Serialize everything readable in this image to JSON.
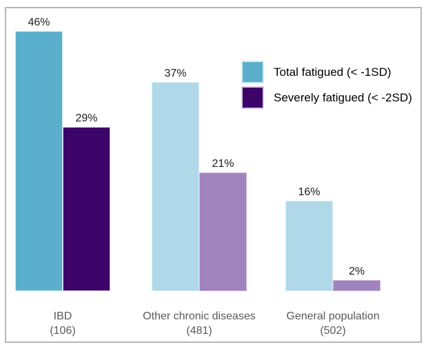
{
  "chart_data": {
    "type": "bar",
    "title": "",
    "xlabel": "",
    "ylabel": "",
    "ylim": [
      0,
      51
    ],
    "grid": false,
    "axis_lines": false,
    "legend_position": "upper-right",
    "categories": [
      {
        "name": "IBD",
        "count": "(106)"
      },
      {
        "name": "Other chronic diseases",
        "count": "(481)"
      },
      {
        "name": "General population",
        "count": "(502)"
      }
    ],
    "series": [
      {
        "name": "Total fatigued (< -1SD)",
        "values": [
          46,
          37,
          16
        ],
        "value_labels": [
          "46%",
          "37%",
          "16%"
        ],
        "bar_colors": [
          "#5bafcd",
          "#b0d8e9",
          "#b0d8e9"
        ],
        "bar_border_colors": [
          "#cde9f3",
          "#d9eef6",
          "#d9eef6"
        ],
        "legend_color": "#5bafcd",
        "legend_border_color": "#d3ecf5"
      },
      {
        "name": "Severely fatigued (< -2SD)",
        "values": [
          29,
          21,
          2
        ],
        "value_labels": [
          "29%",
          "21%",
          "2%"
        ],
        "bar_colors": [
          "#3c0468",
          "#a183be",
          "#a183be"
        ],
        "bar_border_colors": [
          "#d5c6e5",
          "#c9b4dc",
          "#c9b4dc"
        ],
        "legend_color": "#3c0468",
        "legend_border_color": "#d7c9e7"
      }
    ]
  },
  "colors": {
    "background": "#ffffff",
    "frame_border": "#b7b7b7",
    "value_label_text": "#1c1c1c",
    "category_label_text": "#595959",
    "legend_text": "#000000"
  }
}
